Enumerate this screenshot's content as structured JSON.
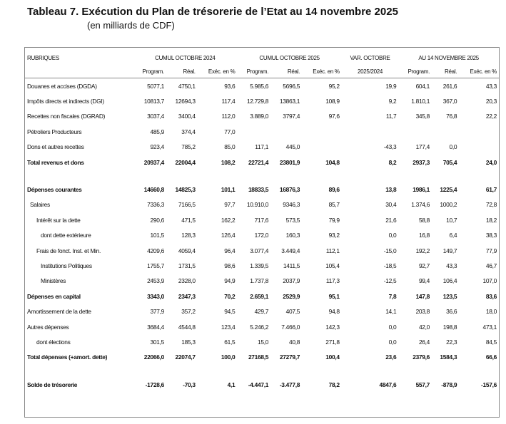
{
  "header": {
    "title": "Tableau 7. Exécution du Plan de trésorerie de l’Etat au 14 novembre 2025",
    "subtitle": "(en milliards de CDF)"
  },
  "table": {
    "rubriques": "RUBRIQUES",
    "groups": [
      {
        "name": "CUMUL OCTOBRE 2024",
        "columns": [
          "Program.",
          "Réal.",
          "Exéc. en %"
        ]
      },
      {
        "name": "CUMUL OCTOBRE 2025",
        "columns": [
          "Program.",
          "Réal.",
          "Exéc. en %"
        ]
      },
      {
        "name": "VAR. OCTOBRE",
        "columns": [
          "2025/2024"
        ]
      },
      {
        "name": "AU 14 NOVEMBRE 2025",
        "columns": [
          "Program.",
          "Réal.",
          "Exéc. en %"
        ]
      }
    ],
    "rows": [
      {
        "label": "Douanes et accises (DGDA)",
        "cells": [
          "5077,1",
          "4750,1",
          "93,6",
          "5.985,6",
          "5696,5",
          "95,2",
          "19,9",
          "604,1",
          "261,6",
          "43,3"
        ]
      },
      {
        "label": "Impôts directs et indirects (DGI)",
        "cells": [
          "10813,7",
          "12694,3",
          "117,4",
          "12.729,8",
          "13863,1",
          "108,9",
          "9,2",
          "1.810,1",
          "367,0",
          "20,3"
        ]
      },
      {
        "label": "Recettes non fiscales (DGRAD)",
        "cells": [
          "3037,4",
          "3400,4",
          "112,0",
          "3.889,0",
          "3797,4",
          "97,6",
          "11,7",
          "345,8",
          "76,8",
          "22,2"
        ]
      },
      {
        "label": "Pétroliers Producteurs",
        "cells": [
          "485,9",
          "374,4",
          "77,0",
          null,
          null,
          null,
          null,
          null,
          null,
          null
        ]
      },
      {
        "label": "Dons et autres recettes",
        "cells": [
          "923,4",
          "785,2",
          "85,0",
          "117,1",
          "445,0",
          null,
          "-43,3",
          "177,4",
          "0,0",
          null
        ]
      },
      {
        "label": "Total revenus et dons",
        "cells": [
          "20937,4",
          "22004,4",
          "108,2",
          "22721,4",
          "23801,9",
          "104,8",
          "8,2",
          "2937,3",
          "705,4",
          "24,0"
        ]
      },
      {
        "label": "Dépenses courantes",
        "cells": [
          "14660,8",
          "14825,3",
          "101,1",
          "18833,5",
          "16876,3",
          "89,6",
          "13,8",
          "1986,1",
          "1225,4",
          "61,7"
        ]
      },
      {
        "label": "Salaires",
        "cells": [
          "7336,3",
          "7166,5",
          "97,7",
          "10.910,0",
          "9346,3",
          "85,7",
          "30,4",
          "1.374,6",
          "1000,2",
          "72,8"
        ]
      },
      {
        "label": "Intérêt sur la dette",
        "cells": [
          "290,6",
          "471,5",
          "162,2",
          "717,6",
          "573,5",
          "79,9",
          "21,6",
          "58,8",
          "10,7",
          "18,2"
        ]
      },
      {
        "label": "dont dette extérieure",
        "cells": [
          "101,5",
          "128,3",
          "126,4",
          "172,0",
          "160,3",
          "93,2",
          "0,0",
          "16,8",
          "6,4",
          "38,3"
        ]
      },
      {
        "label": "Frais de fonct. Inst. et Min.",
        "cells": [
          "4209,6",
          "4059,4",
          "96,4",
          "3.077,4",
          "3.449,4",
          "112,1",
          "-15,0",
          "192,2",
          "149,7",
          "77,9"
        ]
      },
      {
        "label": "Institutions Politiques",
        "cells": [
          "1755,7",
          "1731,5",
          "98,6",
          "1.339,5",
          "1411,5",
          "105,4",
          "-18,5",
          "92,7",
          "43,3",
          "46,7"
        ]
      },
      {
        "label": "Ministères",
        "cells": [
          "2453,9",
          "2328,0",
          "94,9",
          "1.737,8",
          "2037,9",
          "117,3",
          "-12,5",
          "99,4",
          "106,4",
          "107,0"
        ]
      },
      {
        "label": "Dépenses en capital",
        "cells": [
          "3343,0",
          "2347,3",
          "70,2",
          "2.659,1",
          "2529,9",
          "95,1",
          "7,8",
          "147,8",
          "123,5",
          "83,6"
        ]
      },
      {
        "label": "Amortissement de la dette",
        "cells": [
          "377,9",
          "357,2",
          "94,5",
          "429,7",
          "407,5",
          "94,8",
          "14,1",
          "203,8",
          "36,6",
          "18,0"
        ]
      },
      {
        "label": "Autres dépenses",
        "cells": [
          "3684,4",
          "4544,8",
          "123,4",
          "5.246,2",
          "7.466,0",
          "142,3",
          "0,0",
          "42,0",
          "198,8",
          "473,1"
        ]
      },
      {
        "label": "dont élections",
        "cells": [
          "301,5",
          "185,3",
          "61,5",
          "15,0",
          "40,8",
          "271,8",
          "0,0",
          "26,4",
          "22,3",
          "84,5"
        ]
      },
      {
        "label": "Total dépenses (+amort. dette)",
        "cells": [
          "22066,0",
          "22074,7",
          "100,0",
          "27168,5",
          "27279,7",
          "100,4",
          "23,6",
          "2379,6",
          "1584,3",
          "66,6"
        ]
      },
      {
        "label": "Solde de trésorerie",
        "cells": [
          "-1728,6",
          "-70,3",
          "4,1",
          "-4.447,1",
          "-3.477,8",
          "78,2",
          "4847,6",
          "557,7",
          "-878,9",
          "-157,6"
        ]
      }
    ]
  }
}
